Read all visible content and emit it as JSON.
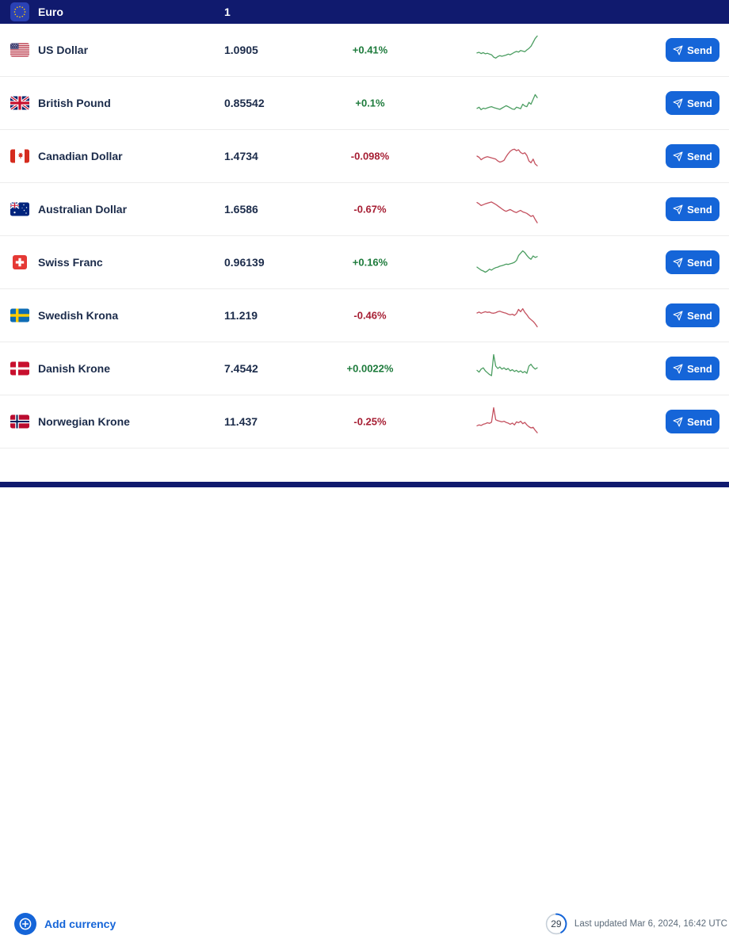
{
  "header": {
    "base_currency": "Euro",
    "base_amount": "1",
    "flag": "eu"
  },
  "actions": {
    "send_label": "Send"
  },
  "rows": [
    {
      "name": "US Dollar",
      "flag": "us",
      "rate": "1.0905",
      "change": "+0.41%",
      "direction": "up"
    },
    {
      "name": "British Pound",
      "flag": "gb",
      "rate": "0.85542",
      "change": "+0.1%",
      "direction": "up"
    },
    {
      "name": "Canadian Dollar",
      "flag": "ca",
      "rate": "1.4734",
      "change": "-0.098%",
      "direction": "down"
    },
    {
      "name": "Australian Dollar",
      "flag": "au",
      "rate": "1.6586",
      "change": "-0.67%",
      "direction": "down"
    },
    {
      "name": "Swiss Franc",
      "flag": "ch",
      "rate": "0.96139",
      "change": "+0.16%",
      "direction": "up"
    },
    {
      "name": "Swedish Krona",
      "flag": "se",
      "rate": "11.219",
      "change": "-0.46%",
      "direction": "down"
    },
    {
      "name": "Danish Krone",
      "flag": "dk",
      "rate": "7.4542",
      "change": "+0.0022%",
      "direction": "up"
    },
    {
      "name": "Norwegian Krone",
      "flag": "no",
      "rate": "11.437",
      "change": "-0.25%",
      "direction": "down"
    }
  ],
  "footer": {
    "add_currency_label": "Add currency",
    "countdown": "29",
    "last_updated": "Last updated Mar 6, 2024, 16:42 UTC"
  },
  "colors": {
    "navy": "#101A6E",
    "blue": "#1565D8",
    "green": "#1E7B3C",
    "red": "#A61E33",
    "spark_green": "#4C9E62",
    "spark_red": "#C4515F"
  },
  "chart_data": [
    {
      "type": "line",
      "name": "US Dollar 24h trend",
      "trend": "up",
      "ylim": [
        0,
        100
      ],
      "values": [
        40,
        42,
        38,
        41,
        37,
        39,
        36,
        34,
        26,
        23,
        28,
        31,
        29,
        31,
        33,
        36,
        34,
        38,
        42,
        45,
        43,
        48,
        46,
        44,
        50,
        55,
        62,
        75,
        88,
        96
      ]
    },
    {
      "type": "line",
      "name": "British Pound 24h trend",
      "trend": "up",
      "ylim": [
        0,
        100
      ],
      "values": [
        32,
        36,
        28,
        33,
        31,
        34,
        36,
        38,
        35,
        33,
        31,
        29,
        33,
        37,
        41,
        38,
        34,
        30,
        29,
        36,
        34,
        31,
        46,
        40,
        38,
        52,
        46,
        62,
        78,
        68
      ]
    },
    {
      "type": "line",
      "name": "Canadian Dollar 24h trend",
      "trend": "down",
      "ylim": [
        0,
        100
      ],
      "values": [
        50,
        46,
        38,
        43,
        46,
        48,
        46,
        44,
        42,
        40,
        34,
        30,
        32,
        36,
        48,
        58,
        66,
        71,
        73,
        68,
        71,
        62,
        58,
        61,
        52,
        34,
        28,
        40,
        24,
        18
      ]
    },
    {
      "type": "line",
      "name": "Australian Dollar 24h trend",
      "trend": "down",
      "ylim": [
        0,
        100
      ],
      "values": [
        72,
        68,
        62,
        65,
        68,
        70,
        72,
        74,
        70,
        66,
        61,
        56,
        51,
        46,
        43,
        46,
        49,
        45,
        41,
        39,
        43,
        46,
        41,
        39,
        36,
        31,
        26,
        29,
        16,
        5
      ]
    },
    {
      "type": "line",
      "name": "Swiss Franc 24h trend",
      "trend": "up",
      "ylim": [
        0,
        100
      ],
      "values": [
        34,
        29,
        24,
        21,
        17,
        21,
        27,
        24,
        29,
        32,
        34,
        37,
        39,
        41,
        44,
        43,
        45,
        47,
        50,
        56,
        72,
        80,
        88,
        82,
        73,
        65,
        60,
        71,
        66,
        69
      ]
    },
    {
      "type": "line",
      "name": "Swedish Krona 24h trend",
      "trend": "down",
      "ylim": [
        0,
        100
      ],
      "values": [
        58,
        61,
        57,
        60,
        62,
        60,
        61,
        58,
        57,
        59,
        62,
        64,
        61,
        59,
        57,
        54,
        52,
        54,
        50,
        56,
        70,
        62,
        72,
        60,
        52,
        42,
        36,
        30,
        22,
        12
      ]
    },
    {
      "type": "line",
      "name": "Danish Krone 24h trend",
      "trend": "up",
      "ylim": [
        0,
        100
      ],
      "values": [
        44,
        38,
        48,
        52,
        42,
        36,
        30,
        26,
        96,
        58,
        50,
        55,
        48,
        52,
        46,
        50,
        42,
        46,
        40,
        44,
        38,
        42,
        36,
        40,
        34,
        58,
        64,
        54,
        48,
        52
      ]
    },
    {
      "type": "line",
      "name": "Norwegian Krone 24h trend",
      "trend": "down",
      "ylim": [
        0,
        100
      ],
      "values": [
        36,
        39,
        37,
        41,
        43,
        46,
        44,
        48,
        96,
        56,
        53,
        51,
        49,
        51,
        47,
        45,
        41,
        45,
        39,
        49,
        46,
        51,
        43,
        47,
        39,
        33,
        29,
        31,
        21,
        13
      ]
    }
  ]
}
